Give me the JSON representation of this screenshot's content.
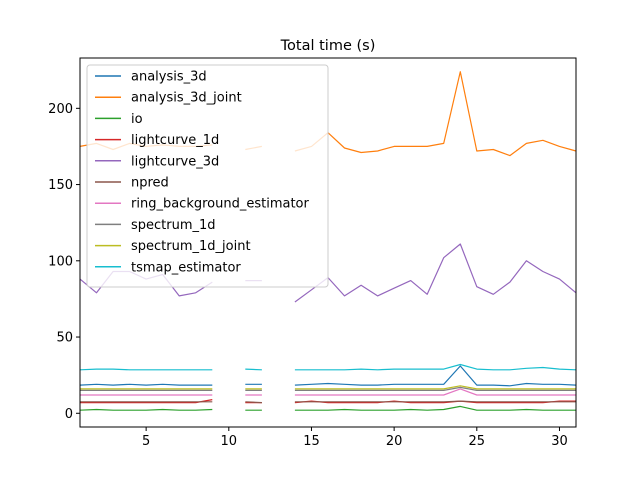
{
  "chart_data": {
    "type": "line",
    "title": "Total time (s)",
    "xlabel": "",
    "ylabel": "",
    "xlim": [
      1,
      31
    ],
    "ylim": [
      -9,
      233
    ],
    "x_ticks": [
      5,
      10,
      15,
      20,
      25,
      30
    ],
    "y_ticks": [
      0,
      50,
      100,
      150,
      200
    ],
    "grid": false,
    "legend_position": "upper-left",
    "x": [
      1,
      2,
      3,
      4,
      5,
      6,
      7,
      8,
      9,
      10,
      11,
      12,
      13,
      14,
      15,
      16,
      17,
      18,
      19,
      20,
      21,
      22,
      23,
      24,
      25,
      26,
      27,
      28,
      29,
      30,
      31
    ],
    "series": [
      {
        "name": "analysis_3d",
        "color": "#1f77b4",
        "values": [
          18.5,
          19,
          18.5,
          19,
          18.5,
          19,
          18.5,
          18.5,
          18.5,
          null,
          19,
          19,
          null,
          18.5,
          19,
          19.5,
          19,
          18.5,
          18.5,
          19,
          19,
          19,
          19,
          31,
          18.5,
          18.5,
          18,
          19.5,
          19,
          19,
          18.5
        ]
      },
      {
        "name": "analysis_3d_joint",
        "color": "#ff7f0e",
        "values": [
          175,
          177,
          173,
          177,
          175,
          176,
          175,
          175,
          176,
          null,
          173,
          175,
          null,
          172,
          175,
          184,
          174,
          171,
          172,
          175,
          175,
          175,
          177,
          224,
          172,
          173,
          169,
          177,
          179,
          175,
          172
        ]
      },
      {
        "name": "io",
        "color": "#2ca02c",
        "values": [
          2,
          2.5,
          2,
          2,
          2,
          2.5,
          2,
          2,
          2.5,
          null,
          2,
          2,
          null,
          2,
          2,
          2,
          2.5,
          2,
          2,
          2,
          2.5,
          2,
          2.5,
          4.5,
          2,
          2,
          2,
          2.5,
          2,
          2,
          2
        ]
      },
      {
        "name": "lightcurve_1d",
        "color": "#d62728",
        "values": [
          7,
          7,
          7,
          7,
          7,
          7,
          7,
          7,
          9,
          null,
          7,
          7,
          null,
          7,
          8,
          7,
          7,
          7,
          7,
          8,
          7,
          7,
          7,
          8,
          7,
          7,
          7,
          7,
          7,
          8,
          8
        ]
      },
      {
        "name": "lightcurve_3d",
        "color": "#9467bd",
        "values": [
          88,
          79,
          93,
          93,
          88,
          91,
          77,
          79,
          86,
          null,
          87,
          87,
          null,
          73,
          81,
          89,
          77,
          84,
          77,
          82,
          87,
          78,
          102,
          111,
          83,
          78,
          86,
          100,
          93,
          88,
          79
        ]
      },
      {
        "name": "npred",
        "color": "#8c564b",
        "values": [
          7.5,
          7.5,
          7.5,
          7.5,
          7.5,
          7.5,
          7.5,
          7.5,
          7.5,
          null,
          7.5,
          7,
          null,
          7.5,
          7.5,
          7.5,
          7.5,
          7.5,
          7.5,
          7.5,
          7.5,
          7.5,
          7.5,
          8,
          7.5,
          7.5,
          7.5,
          7.5,
          7.5,
          7.5,
          7.5
        ]
      },
      {
        "name": "ring_background_estimator",
        "color": "#e377c2",
        "values": [
          12,
          12,
          12,
          12,
          12,
          12,
          12,
          12,
          12,
          null,
          12,
          12,
          null,
          12,
          12,
          12,
          12,
          12,
          12,
          12,
          12,
          12,
          12,
          16,
          12,
          12,
          12,
          12,
          12,
          12,
          12
        ]
      },
      {
        "name": "spectrum_1d",
        "color": "#7f7f7f",
        "values": [
          15,
          15,
          15,
          15,
          15,
          15,
          15,
          15,
          15,
          null,
          15,
          15,
          null,
          15,
          15,
          15,
          15,
          15,
          15,
          15,
          15,
          15,
          15,
          17,
          15,
          15,
          15,
          15,
          15,
          15,
          15
        ]
      },
      {
        "name": "spectrum_1d_joint",
        "color": "#bcbd22",
        "values": [
          16,
          16,
          16,
          16,
          16,
          16,
          16,
          16,
          16,
          null,
          16,
          16,
          null,
          16,
          16,
          16,
          16,
          16,
          16,
          16,
          16,
          16,
          16,
          18,
          16,
          16,
          16,
          16,
          16,
          16,
          16
        ]
      },
      {
        "name": "tsmap_estimator",
        "color": "#17becf",
        "values": [
          28.5,
          29,
          29,
          28.5,
          28.5,
          28.5,
          28.5,
          28.5,
          28.5,
          null,
          29,
          28.5,
          null,
          28.5,
          28.5,
          28.5,
          28.5,
          29,
          28.5,
          29,
          29,
          29,
          29,
          32,
          29,
          28.5,
          28.5,
          29.5,
          30,
          29,
          28.5
        ]
      }
    ]
  }
}
